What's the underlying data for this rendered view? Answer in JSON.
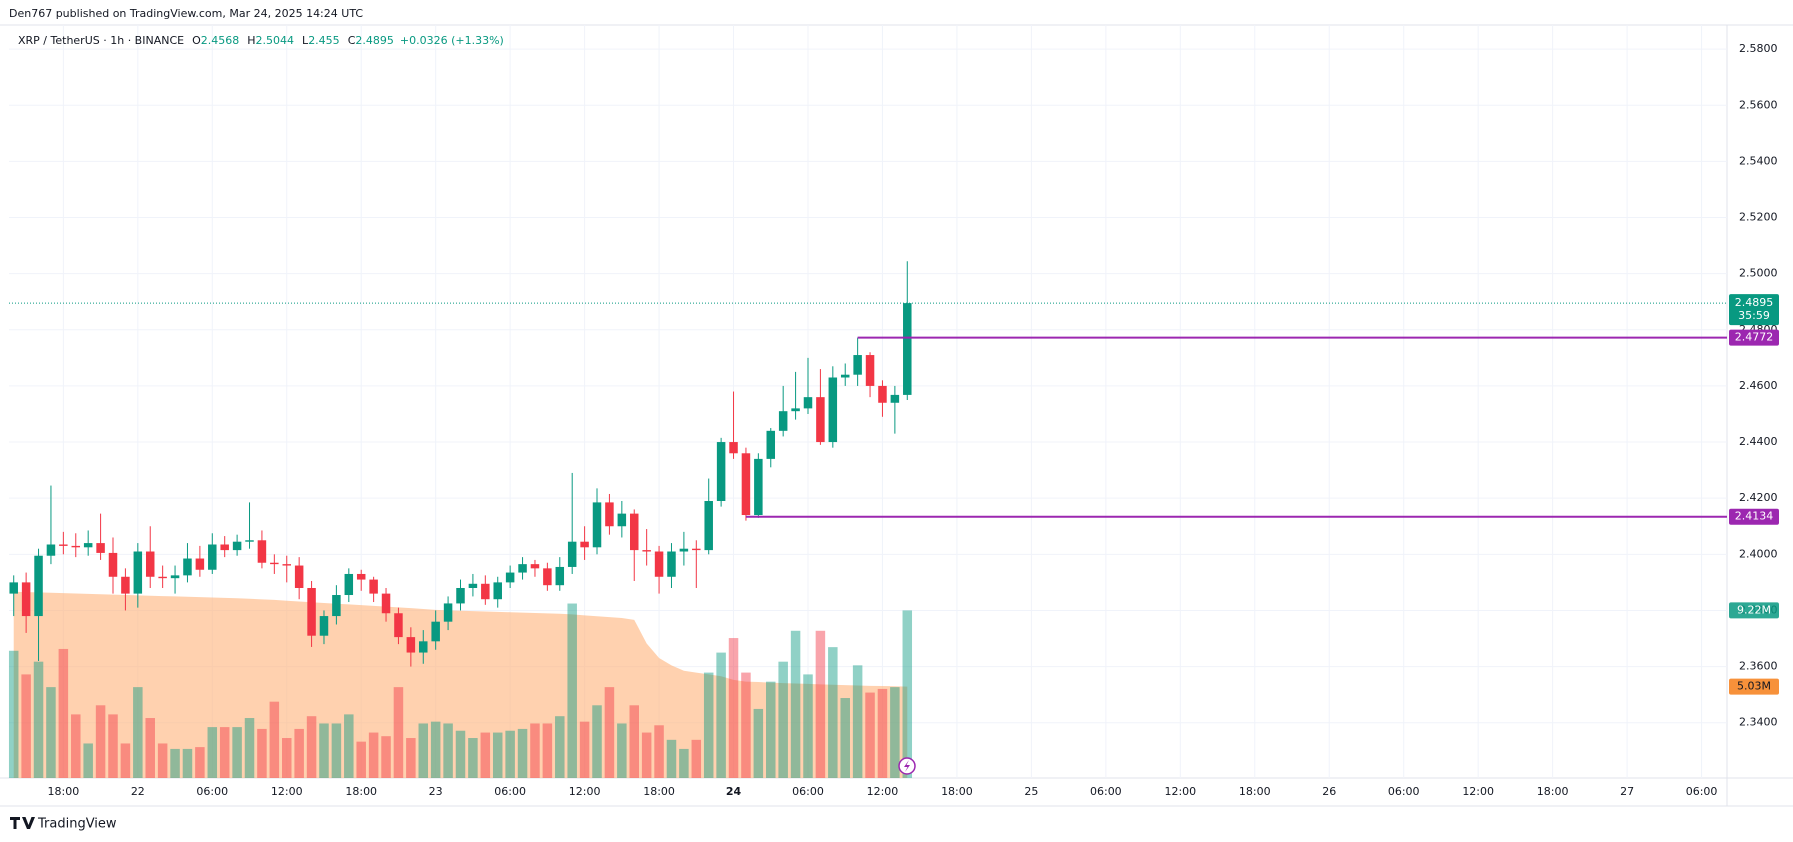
{
  "header": {
    "publisher": "Den767 published on TradingView.com, Mar 24, 2025 14:24 UTC"
  },
  "footer": {
    "brand": "TradingView"
  },
  "chart_data": {
    "type": "candlestick",
    "symbol": "XRP / TetherUS · 1h · BINANCE",
    "legend": {
      "o": "O",
      "h": "H",
      "l": "L",
      "c": "C",
      "change": "+0.0326 (+1.33%)"
    },
    "open": [
      2.386,
      2.39,
      2.378,
      2.3995,
      2.4035,
      2.403,
      2.4025,
      2.404,
      2.4005,
      2.392,
      2.386,
      2.401,
      2.392,
      2.3915,
      2.3925,
      2.3985,
      2.3945,
      2.4035,
      2.4015,
      2.4045,
      2.405,
      2.397,
      2.3965,
      2.396,
      2.388,
      2.371,
      2.378,
      2.3855,
      2.393,
      2.391,
      2.386,
      2.379,
      2.3705,
      2.365,
      2.369,
      2.376,
      2.3825,
      2.388,
      2.3895,
      2.384,
      2.39,
      2.3935,
      2.3965,
      2.395,
      2.389,
      2.3955,
      2.4045,
      2.4025,
      2.4185,
      2.41,
      2.4145,
      2.4015,
      2.401,
      2.392,
      2.401,
      2.402,
      2.4015,
      2.419,
      2.44,
      2.436,
      2.414,
      2.434,
      2.444,
      2.451,
      2.452,
      2.456,
      2.44,
      2.463,
      2.464,
      2.471,
      2.46,
      2.454,
      2.4568
    ],
    "high": [
      2.3925,
      2.3935,
      2.402,
      2.4245,
      2.408,
      2.4075,
      2.4085,
      2.4145,
      2.406,
      2.395,
      2.404,
      2.41,
      2.396,
      2.396,
      2.404,
      2.403,
      2.4075,
      2.4065,
      2.407,
      2.4185,
      2.4085,
      2.4,
      2.3995,
      2.399,
      2.3905,
      2.38,
      2.389,
      2.395,
      2.3945,
      2.392,
      2.388,
      2.381,
      2.374,
      2.373,
      2.38,
      2.385,
      2.391,
      2.393,
      2.3925,
      2.392,
      2.396,
      2.399,
      2.398,
      2.397,
      2.399,
      2.429,
      2.41,
      2.4235,
      2.4215,
      2.419,
      2.416,
      2.409,
      2.403,
      2.404,
      2.408,
      2.405,
      2.427,
      2.4415,
      2.458,
      2.438,
      2.436,
      2.445,
      2.46,
      2.465,
      2.47,
      2.466,
      2.467,
      2.468,
      2.4772,
      2.472,
      2.462,
      2.46,
      2.5044
    ],
    "low": [
      2.378,
      2.372,
      2.362,
      2.3965,
      2.4,
      2.399,
      2.3995,
      2.398,
      2.386,
      2.38,
      2.381,
      2.388,
      2.388,
      2.386,
      2.39,
      2.392,
      2.393,
      2.399,
      2.3995,
      2.402,
      2.395,
      2.393,
      2.39,
      2.384,
      2.367,
      2.368,
      2.375,
      2.383,
      2.387,
      2.383,
      2.376,
      2.368,
      2.36,
      2.361,
      2.366,
      2.373,
      2.38,
      2.385,
      2.382,
      2.381,
      2.388,
      2.391,
      2.392,
      2.387,
      2.387,
      2.393,
      2.398,
      2.4,
      2.407,
      2.406,
      2.3905,
      2.396,
      2.386,
      2.388,
      2.396,
      2.388,
      2.4,
      2.417,
      2.434,
      2.412,
      2.413,
      2.431,
      2.442,
      2.448,
      2.45,
      2.439,
      2.438,
      2.46,
      2.46,
      2.456,
      2.449,
      2.443,
      2.455
    ],
    "close": [
      2.39,
      2.378,
      2.3995,
      2.4035,
      2.403,
      2.4025,
      2.404,
      2.4005,
      2.392,
      2.386,
      2.401,
      2.392,
      2.3915,
      2.3925,
      2.3985,
      2.3945,
      2.4035,
      2.4015,
      2.4045,
      2.405,
      2.397,
      2.3965,
      2.396,
      2.388,
      2.371,
      2.378,
      2.3855,
      2.393,
      2.391,
      2.386,
      2.379,
      2.3705,
      2.365,
      2.369,
      2.376,
      2.3825,
      2.388,
      2.3895,
      2.384,
      2.39,
      2.3935,
      2.3965,
      2.395,
      2.389,
      2.3955,
      2.4045,
      2.4025,
      2.4185,
      2.41,
      2.4145,
      2.4015,
      2.401,
      2.392,
      2.401,
      2.402,
      2.4015,
      2.419,
      2.44,
      2.436,
      2.414,
      2.434,
      2.444,
      2.451,
      2.452,
      2.456,
      2.44,
      2.463,
      2.464,
      2.471,
      2.46,
      2.454,
      2.4568,
      2.4895
    ],
    "up_color": "#089981",
    "down_color": "#f23645",
    "volume": {
      "values": [
        7.0,
        5.7,
        6.4,
        5.0,
        7.1,
        3.5,
        1.9,
        4.0,
        3.5,
        1.9,
        5.0,
        3.3,
        1.9,
        1.6,
        1.6,
        1.7,
        2.8,
        2.8,
        2.8,
        3.3,
        2.7,
        4.2,
        2.2,
        2.7,
        3.4,
        3.0,
        3.0,
        3.5,
        2.0,
        2.5,
        2.3,
        5.0,
        2.2,
        3.0,
        3.1,
        3.0,
        2.6,
        2.2,
        2.5,
        2.5,
        2.6,
        2.7,
        3.0,
        3.0,
        3.4,
        9.6,
        3.1,
        4.0,
        5.0,
        3.0,
        4.0,
        2.5,
        2.9,
        2.1,
        1.6,
        2.1,
        5.8,
        6.9,
        7.7,
        5.8,
        3.8,
        5.3,
        6.4,
        8.1,
        5.7,
        8.1,
        7.2,
        4.4,
        6.2,
        4.7,
        4.9,
        5.0,
        9.22
      ],
      "last_label": "9.22M"
    },
    "volume_ma": {
      "values": [
        10.25,
        10.23,
        10.21,
        10.19,
        10.17,
        10.15,
        10.13,
        10.11,
        10.09,
        10.07,
        10.05,
        10.03,
        10.01,
        9.99,
        9.97,
        9.95,
        9.93,
        9.91,
        9.89,
        9.86,
        9.83,
        9.8,
        9.75,
        9.71,
        9.67,
        9.63,
        9.59,
        9.55,
        9.51,
        9.47,
        9.43,
        9.39,
        9.35,
        9.3,
        9.25,
        9.22,
        9.2,
        9.18,
        9.16,
        9.14,
        9.12,
        9.1,
        9.08,
        9.06,
        9.04,
        9.0,
        8.95,
        8.9,
        8.85,
        8.8,
        8.7,
        7.4,
        6.6,
        6.2,
        5.9,
        5.8,
        5.7,
        5.6,
        5.4,
        5.3,
        5.28,
        5.25,
        5.22,
        5.2,
        5.18,
        5.15,
        5.13,
        5.11,
        5.09,
        5.07,
        5.06,
        5.05,
        5.03
      ],
      "last_label": "5.03M",
      "color": "#ffb27a"
    },
    "vlim": [
      0,
      40
    ],
    "levels": [
      {
        "value": 2.4772,
        "from_x": 68
      },
      {
        "value": 2.4134,
        "from_x": 59
      }
    ],
    "level_color": "#9c27b0",
    "countdown": "35:59",
    "xlim": [
      -0.38,
      138.05
    ],
    "xticks": [
      {
        "value": 4,
        "label": "18:00"
      },
      {
        "value": 10,
        "label": "22"
      },
      {
        "value": 16,
        "label": "06:00"
      },
      {
        "value": 22,
        "label": "12:00"
      },
      {
        "value": 28,
        "label": "18:00"
      },
      {
        "value": 34,
        "label": "23"
      },
      {
        "value": 40,
        "label": "06:00"
      },
      {
        "value": 46,
        "label": "12:00"
      },
      {
        "value": 52,
        "label": "18:00"
      },
      {
        "value": 58,
        "label": "24",
        "bold": true
      },
      {
        "value": 64,
        "label": "06:00"
      },
      {
        "value": 70,
        "label": "12:00"
      },
      {
        "value": 76,
        "label": "18:00"
      },
      {
        "value": 82,
        "label": "25"
      },
      {
        "value": 88,
        "label": "06:00"
      },
      {
        "value": 94,
        "label": "12:00"
      },
      {
        "value": 100,
        "label": "18:00"
      },
      {
        "value": 106,
        "label": "26"
      },
      {
        "value": 112,
        "label": "06:00"
      },
      {
        "value": 118,
        "label": "12:00"
      },
      {
        "value": 124,
        "label": "18:00"
      },
      {
        "value": 130,
        "label": "27"
      },
      {
        "value": 136,
        "label": "06:00"
      }
    ],
    "ylim": [
      2.3203,
      2.5886
    ],
    "yticks": [
      {
        "value": 2.34,
        "label": "2.3400"
      },
      {
        "value": 2.36,
        "label": "2.3600"
      },
      {
        "value": 2.38,
        "label": "2.3800"
      },
      {
        "value": 2.4,
        "label": "2.4000"
      },
      {
        "value": 2.42,
        "label": "2.4200"
      },
      {
        "value": 2.44,
        "label": "2.4400"
      },
      {
        "value": 2.46,
        "label": "2.4600"
      },
      {
        "value": 2.48,
        "label": "2.4800"
      },
      {
        "value": 2.5,
        "label": "2.5000"
      },
      {
        "value": 2.52,
        "label": "2.5200"
      },
      {
        "value": 2.54,
        "label": "2.5400"
      },
      {
        "value": 2.56,
        "label": "2.5600"
      },
      {
        "value": 2.58,
        "label": "2.5800"
      }
    ],
    "grid": true
  }
}
